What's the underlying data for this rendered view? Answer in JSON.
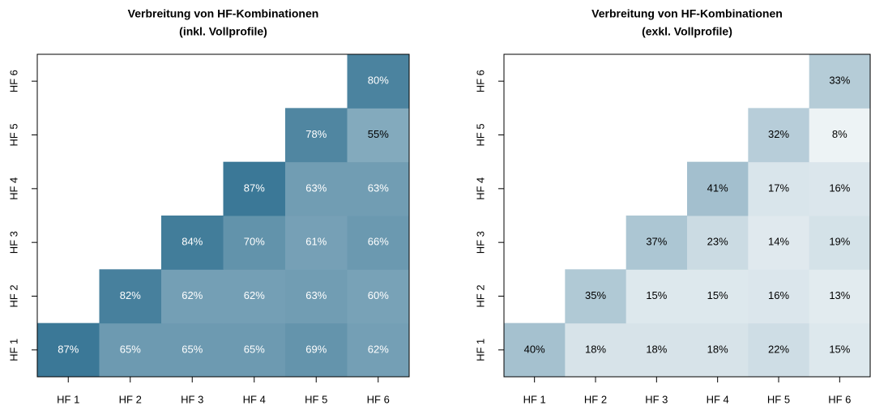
{
  "chart_data": [
    {
      "type": "heatmap",
      "title": "Verbreitung von HF-Kombinationen",
      "subtitle": "(inkl. Vollprofile)",
      "x_categories": [
        "HF 1",
        "HF 2",
        "HF 3",
        "HF 4",
        "HF 5",
        "HF 6"
      ],
      "y_categories": [
        "HF 1",
        "HF 2",
        "HF 3",
        "HF 4",
        "HF 5",
        "HF 6"
      ],
      "values": [
        [
          87,
          65,
          65,
          65,
          69,
          62
        ],
        [
          null,
          82,
          62,
          62,
          63,
          60
        ],
        [
          null,
          null,
          84,
          70,
          61,
          66
        ],
        [
          null,
          null,
          null,
          87,
          63,
          63
        ],
        [
          null,
          null,
          null,
          null,
          78,
          55
        ],
        [
          null,
          null,
          null,
          null,
          null,
          80
        ]
      ],
      "value_labels": [
        [
          "87%",
          "65%",
          "65%",
          "65%",
          "69%",
          "62%"
        ],
        [
          null,
          "82%",
          "62%",
          "62%",
          "63%",
          "60%"
        ],
        [
          null,
          null,
          "84%",
          "70%",
          "61%",
          "66%"
        ],
        [
          null,
          null,
          null,
          "87%",
          "63%",
          "63%"
        ],
        [
          null,
          null,
          null,
          null,
          "78%",
          "55%"
        ],
        [
          null,
          null,
          null,
          null,
          null,
          "80%"
        ]
      ],
      "zlim": [
        0,
        100
      ],
      "color": "#1e6487"
    },
    {
      "type": "heatmap",
      "title": "Verbreitung von HF-Kombinationen",
      "subtitle": "(exkl. Vollprofile)",
      "x_categories": [
        "HF 1",
        "HF 2",
        "HF 3",
        "HF 4",
        "HF 5",
        "HF 6"
      ],
      "y_categories": [
        "HF 1",
        "HF 2",
        "HF 3",
        "HF 4",
        "HF 5",
        "HF 6"
      ],
      "values": [
        [
          40,
          18,
          18,
          18,
          22,
          15
        ],
        [
          null,
          35,
          15,
          15,
          16,
          13
        ],
        [
          null,
          null,
          37,
          23,
          14,
          19
        ],
        [
          null,
          null,
          null,
          41,
          17,
          16
        ],
        [
          null,
          null,
          null,
          null,
          32,
          8
        ],
        [
          null,
          null,
          null,
          null,
          null,
          33
        ]
      ],
      "value_labels": [
        [
          "40%",
          "18%",
          "18%",
          "18%",
          "22%",
          "15%"
        ],
        [
          null,
          "35%",
          "15%",
          "15%",
          "16%",
          "13%"
        ],
        [
          null,
          null,
          "37%",
          "23%",
          "14%",
          "19%"
        ],
        [
          null,
          null,
          null,
          "41%",
          "17%",
          "16%"
        ],
        [
          null,
          null,
          null,
          null,
          "32%",
          "8%"
        ],
        [
          null,
          null,
          null,
          null,
          null,
          "33%"
        ]
      ],
      "zlim": [
        0,
        100
      ],
      "color": "#1e6487"
    }
  ]
}
